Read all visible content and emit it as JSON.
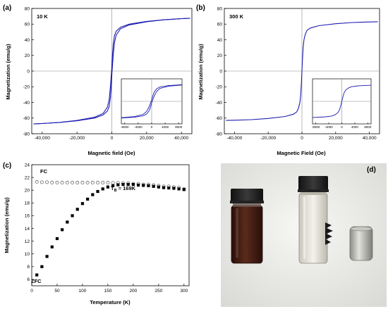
{
  "chart_data": [
    {
      "panel": "(a)",
      "type": "line",
      "annotation": "10 K",
      "xlabel": "Magnetic field (Oe)",
      "ylabel": "Magnetization (emu/g)",
      "xlim": [
        -46000,
        46000
      ],
      "ylim": [
        -80,
        80
      ],
      "xticks": [
        -40000,
        -20000,
        0,
        20000,
        40000
      ],
      "xtick_labels": [
        "-40,000",
        "-20,000",
        "0",
        "20,000",
        "40,000"
      ],
      "yticks": [
        -80,
        -60,
        -40,
        -20,
        0,
        20,
        40,
        60,
        80
      ],
      "series": [
        {
          "x": [
            -45000,
            -40000,
            -30000,
            -20000,
            -10000,
            -5000,
            -2500,
            -1500,
            -800,
            -400,
            -100,
            100,
            400,
            800,
            1500,
            2500,
            5000,
            10000,
            20000,
            30000,
            40000,
            45000
          ],
          "y": [
            -67.5,
            -67,
            -65.5,
            -63,
            -59,
            -54,
            -46,
            -36,
            -20,
            -8,
            2,
            10,
            22,
            34,
            45,
            51,
            56,
            60,
            63.5,
            65.5,
            67,
            67.5
          ]
        },
        {
          "x": [
            45000,
            40000,
            30000,
            20000,
            10000,
            5000,
            2500,
            1500,
            800,
            400,
            100,
            -100,
            -400,
            -800,
            -1500,
            -2500,
            -5000,
            -10000,
            -20000,
            -30000,
            -40000,
            -45000
          ],
          "y": [
            67.5,
            67,
            65.5,
            63,
            59,
            54,
            46,
            36,
            20,
            8,
            -2,
            -10,
            -22,
            -34,
            -45,
            -51,
            -56,
            -60,
            -63.5,
            -65.5,
            -67,
            -67.5
          ]
        }
      ],
      "inset": {
        "xlim": [
          -9000,
          9000
        ],
        "ylim": [
          -80,
          80
        ],
        "xticks": [
          -8000,
          -4000,
          0,
          4000,
          8000
        ],
        "xtick_labels": [
          "-8000",
          "-4000",
          "0",
          "4000",
          "8000"
        ]
      },
      "color": "#1c1cb0"
    },
    {
      "panel": "(b)",
      "type": "line",
      "annotation": "300 K",
      "xlabel": "Magnetic Field (Oe)",
      "ylabel": "Magnetization (emu/g)",
      "xlim": [
        -46000,
        46000
      ],
      "ylim": [
        -80,
        80
      ],
      "xticks": [
        -40000,
        -20000,
        0,
        20000,
        40000
      ],
      "xtick_labels": [
        "-40,000",
        "-20,000",
        "0",
        "20,000",
        "40,000"
      ],
      "yticks": [
        -80,
        -60,
        -40,
        -20,
        0,
        20,
        40,
        60,
        80
      ],
      "series": [
        {
          "x": [
            -45000,
            -40000,
            -30000,
            -20000,
            -10000,
            -5000,
            -3000,
            -2000,
            -1200,
            -700,
            -300,
            0,
            300,
            700,
            1200,
            2000,
            3000,
            5000,
            10000,
            20000,
            30000,
            40000,
            45000
          ],
          "y": [
            -63,
            -62.7,
            -62,
            -60.5,
            -58,
            -55,
            -52,
            -47,
            -40,
            -30,
            -14,
            0,
            14,
            30,
            40,
            47,
            52,
            55,
            58,
            60.5,
            62,
            62.7,
            63
          ]
        }
      ],
      "inset": {
        "xlim": [
          -9000,
          9000
        ],
        "ylim": [
          -80,
          80
        ],
        "xticks": [
          -8000,
          -4000,
          0,
          4000,
          8000
        ],
        "xtick_labels": [
          "-8000",
          "-4000",
          "0",
          "4000",
          "8000"
        ]
      },
      "color": "#1c1cb0"
    },
    {
      "panel": "(c)",
      "type": "scatter",
      "xlabel": "Temperature (K)",
      "ylabel": "Magnetization (emu/g)",
      "xlim": [
        0,
        310
      ],
      "ylim": [
        5,
        24
      ],
      "xticks": [
        0,
        50,
        100,
        150,
        200,
        250,
        300
      ],
      "yticks": [
        6,
        8,
        10,
        12,
        14,
        16,
        18,
        20,
        22,
        24
      ],
      "fc_label": "FC",
      "zfc_label": "ZFC",
      "tb_prefix": "T",
      "tb_sub": "B",
      "tb_value": " = 169K",
      "series": [
        {
          "name": "FC",
          "marker": "open-circle",
          "x": [
            10,
            20,
            30,
            40,
            50,
            60,
            70,
            80,
            90,
            100,
            110,
            120,
            130,
            140,
            150,
            160,
            170,
            180,
            190,
            200,
            210,
            220,
            230,
            240,
            250,
            260,
            270,
            280,
            290,
            300
          ],
          "y": [
            21.3,
            21.25,
            21.25,
            21.2,
            21.2,
            21.2,
            21.2,
            21.2,
            21.2,
            21.2,
            21.2,
            21.2,
            21.2,
            21.2,
            21.2,
            21.15,
            21.15,
            21.1,
            21.1,
            21.0,
            21.0,
            20.9,
            20.9,
            20.8,
            20.7,
            20.6,
            20.6,
            20.5,
            20.4,
            20.2
          ]
        },
        {
          "name": "ZFC",
          "marker": "filled-square",
          "x": [
            10,
            20,
            30,
            40,
            50,
            60,
            70,
            80,
            90,
            100,
            110,
            120,
            130,
            140,
            150,
            160,
            170,
            180,
            190,
            200,
            210,
            220,
            230,
            240,
            250,
            260,
            270,
            280,
            290,
            300
          ],
          "y": [
            6.7,
            8.0,
            9.6,
            11.1,
            12.4,
            13.8,
            15.0,
            16.0,
            17.0,
            17.9,
            18.6,
            19.3,
            19.8,
            20.2,
            20.5,
            20.7,
            20.85,
            20.9,
            20.9,
            20.9,
            20.8,
            20.75,
            20.7,
            20.6,
            20.5,
            20.4,
            20.35,
            20.3,
            20.2,
            20.1
          ]
        }
      ]
    }
  ],
  "photo": {
    "panel": "(d)"
  }
}
